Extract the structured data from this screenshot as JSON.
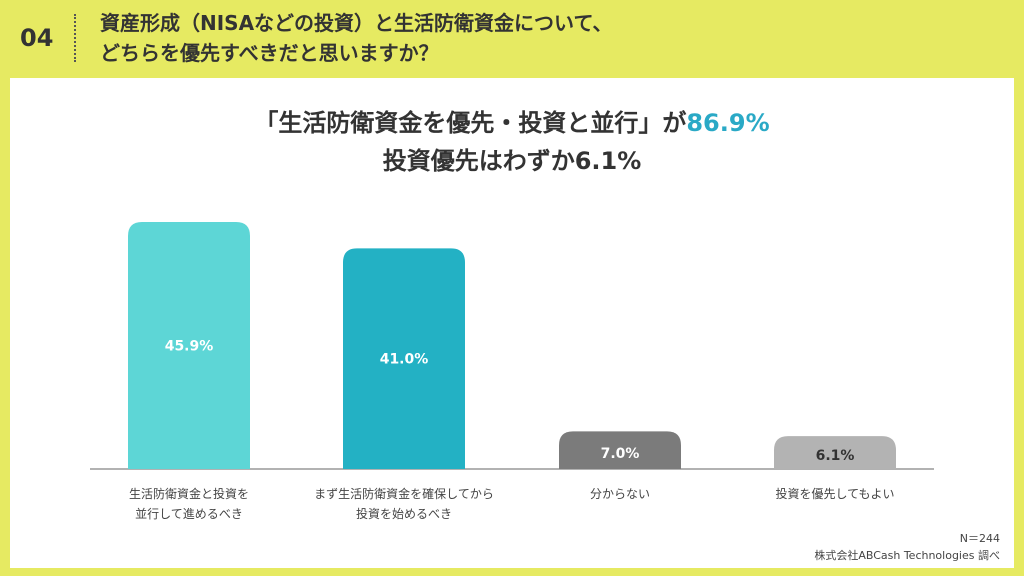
{
  "header": {
    "number": "04",
    "title_line1": "資産形成（NISAなどの投資）と生活防衛資金について、",
    "title_line2": "どちらを優先すべきだと思いますか？"
  },
  "headline": {
    "line1_prefix": "「生活防衛資金を優先・投資と並行」が",
    "line1_accent": "86.9%",
    "line2": "投資優先はわずか6.1%"
  },
  "chart_data": {
    "type": "bar",
    "categories": [
      [
        "生活防衛資金と投資を",
        "並行して進めるべき"
      ],
      [
        "まず生活防衛資金を確保してから",
        "投資を始めるべき"
      ],
      [
        "分からない"
      ],
      [
        "投資を優先してもよい"
      ]
    ],
    "values": [
      45.9,
      41.0,
      7.0,
      6.1
    ],
    "value_labels": [
      "45.9%",
      "41.0%",
      "7.0%",
      "6.1%"
    ],
    "colors": [
      "#5dd6d6",
      "#23b1c4",
      "#7b7b7b",
      "#b3b3b3"
    ],
    "label_colors": [
      "#ffffff",
      "#ffffff",
      "#ffffff",
      "#333333"
    ],
    "ylim": [
      0,
      50
    ]
  },
  "footer": {
    "sample": "N＝244",
    "source": "株式会社ABCash Technologies 調べ"
  }
}
